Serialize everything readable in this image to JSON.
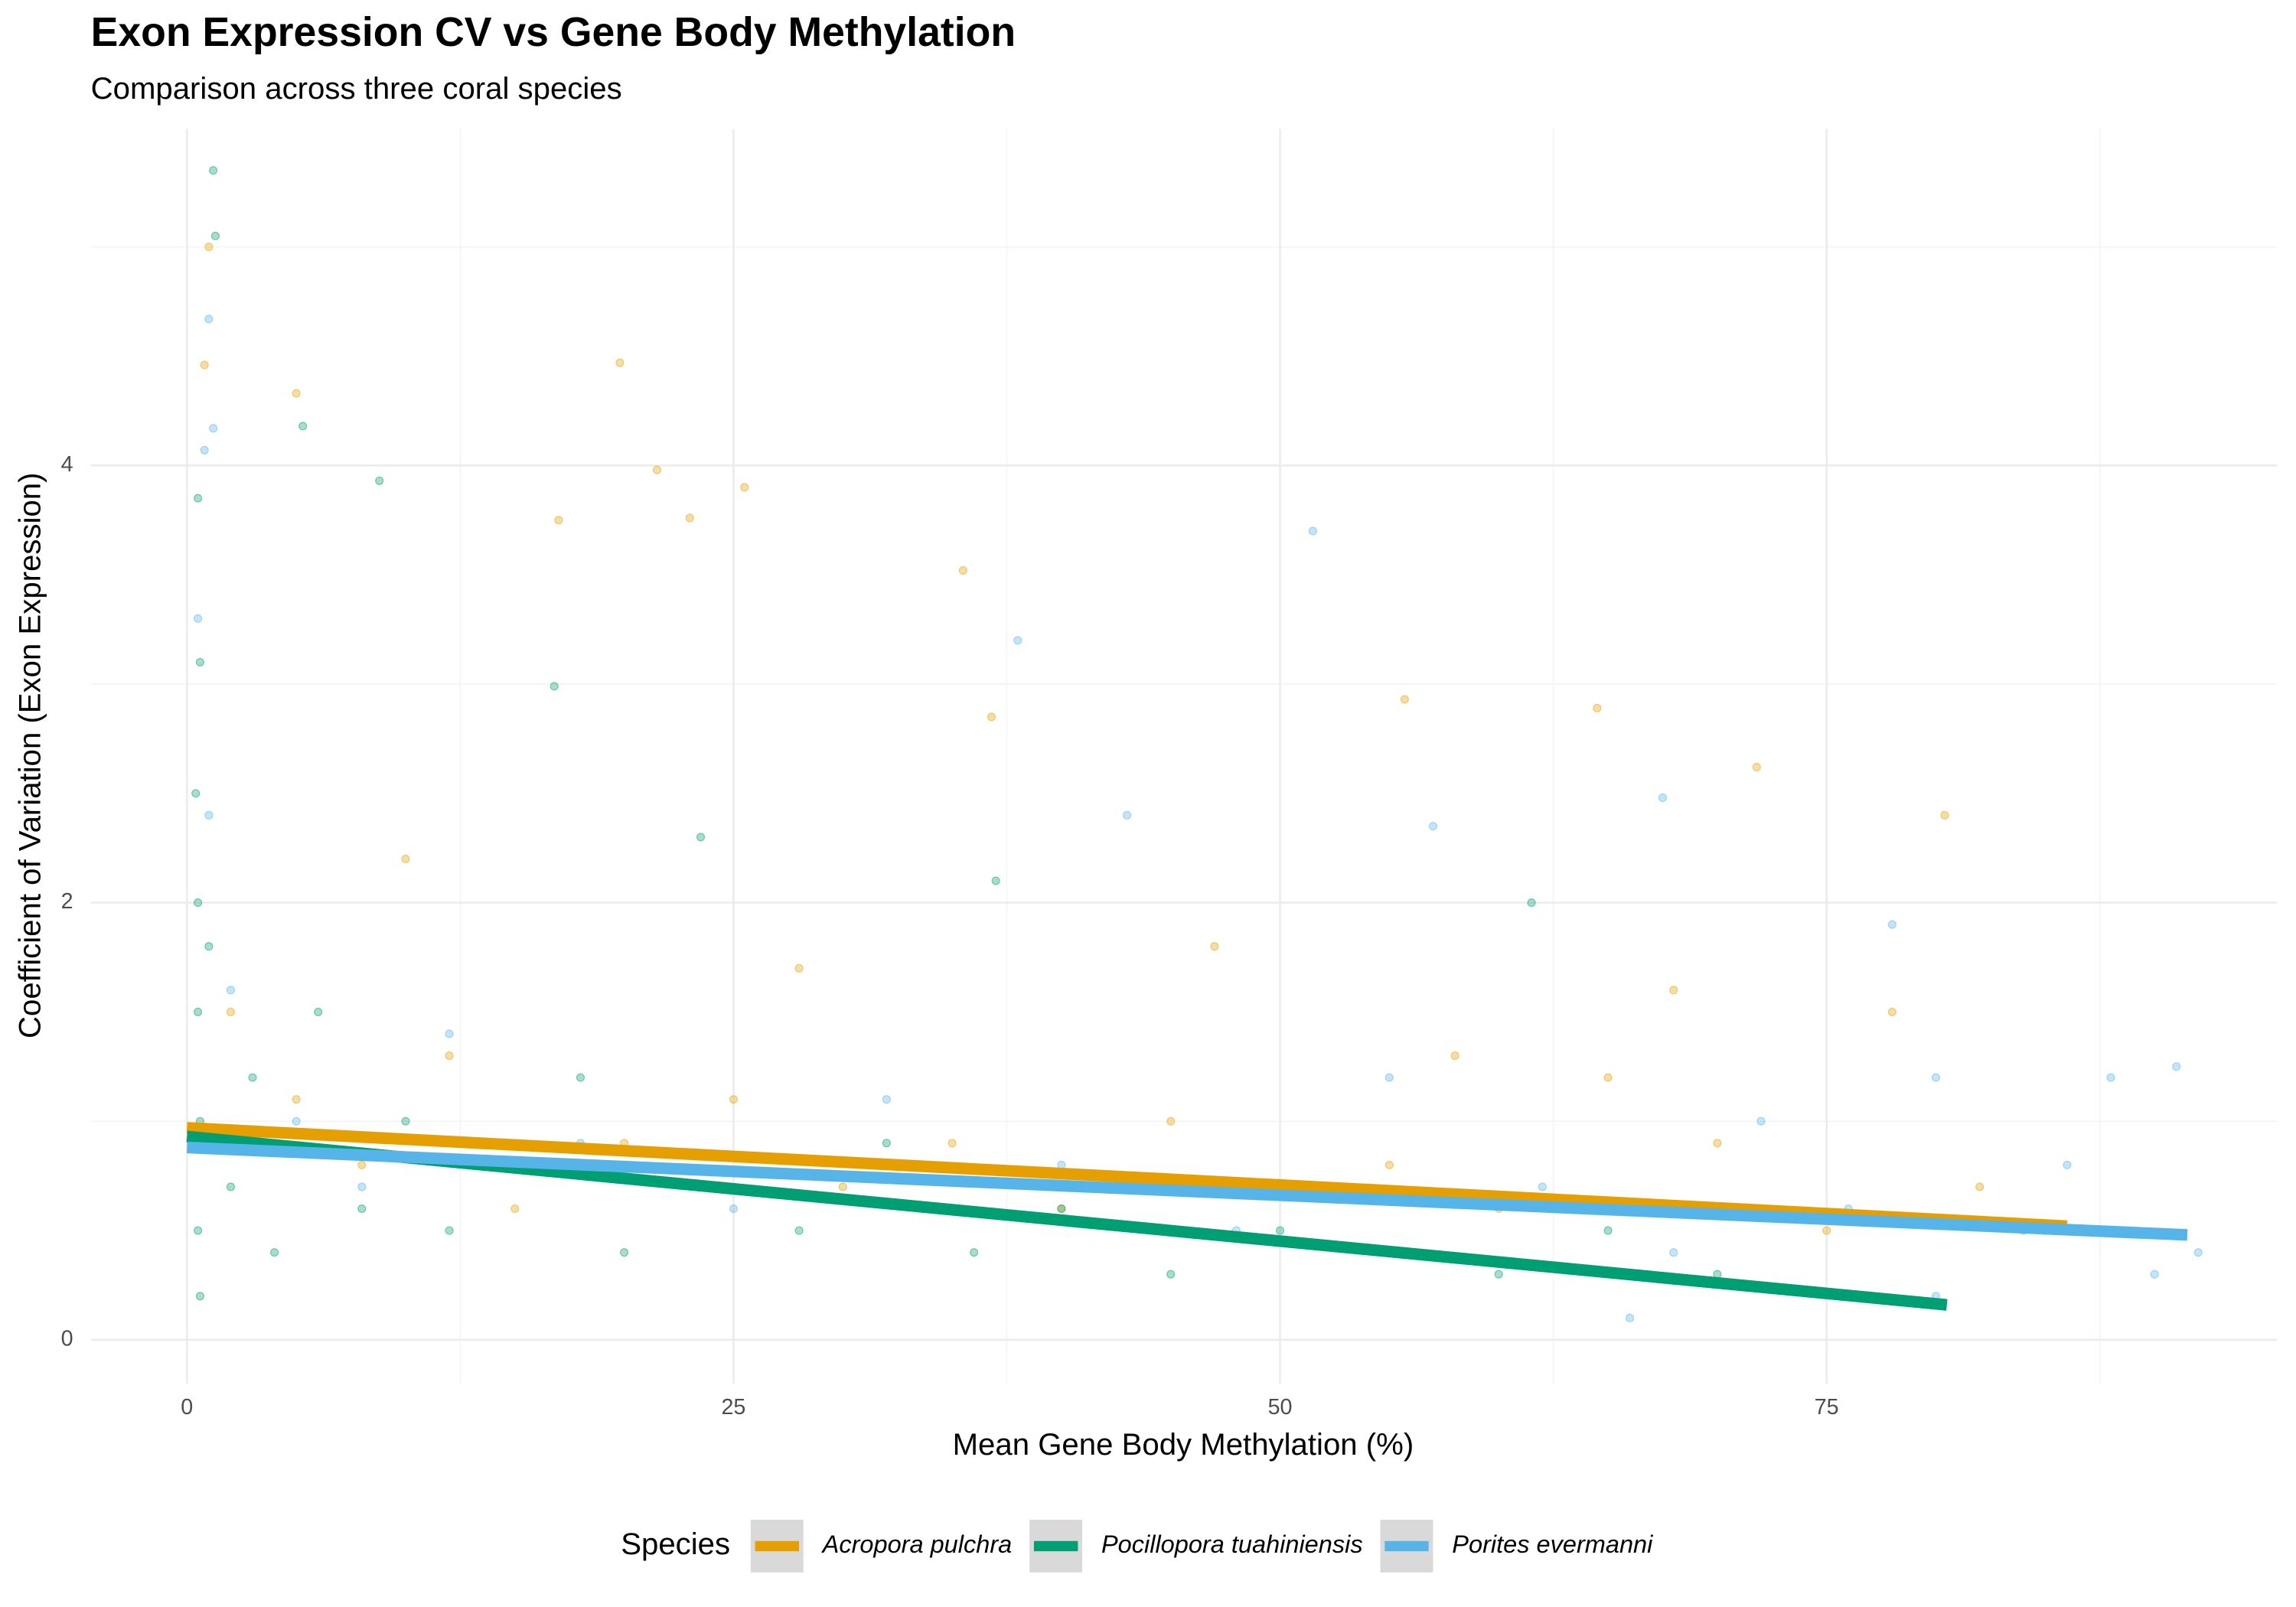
{
  "chart_data": {
    "type": "scatter",
    "title": "Exon Expression CV vs Gene Body Methylation",
    "subtitle": "Comparison across three coral species",
    "x_label": "Mean Gene Body Methylation (%)",
    "y_label": "Coefficient of Variation (Exon Expression)",
    "legend_title": "Species",
    "legend_position": "bottom",
    "grid": true,
    "xlim": [
      -4.4,
      95.6
    ],
    "ylim": [
      -0.2,
      5.54
    ],
    "xticks": [
      0,
      25,
      50,
      75
    ],
    "yticks": [
      0,
      2,
      4
    ],
    "x_minor_ticks": [
      12.5,
      37.5,
      62.5,
      87.5
    ],
    "y_minor_ticks": [
      1,
      3,
      5
    ],
    "series": [
      {
        "name": "Acropora pulchra",
        "color": "#E69F00",
        "x": [
          5,
          19.8,
          21.5,
          25.5,
          23,
          35.5,
          17,
          1,
          0.8,
          55.7,
          36.8,
          64.5,
          71.8,
          80.4,
          2,
          5,
          8,
          12,
          15,
          20,
          25,
          30,
          35,
          40,
          45,
          50,
          55,
          60,
          65,
          70,
          75,
          78,
          82,
          85,
          10,
          28,
          47,
          58,
          68
        ],
        "y": [
          4.33,
          4.47,
          3.98,
          3.9,
          3.76,
          3.52,
          3.75,
          5.0,
          4.46,
          2.93,
          2.85,
          2.89,
          2.62,
          2.4,
          1.5,
          1.1,
          0.8,
          1.3,
          0.6,
          0.9,
          1.1,
          0.7,
          0.9,
          0.6,
          1.0,
          0.7,
          0.8,
          0.6,
          1.2,
          0.9,
          0.5,
          1.5,
          0.7,
          0.5,
          2.2,
          1.7,
          1.8,
          1.3,
          1.6
        ],
        "trend": {
          "x": [
            0,
            86
          ],
          "y": [
            0.97,
            0.52
          ]
        }
      },
      {
        "name": "Pocillopora tuahiniensis",
        "color": "#009E73",
        "x": [
          1.2,
          1.3,
          5.3,
          8.8,
          0.5,
          0.6,
          0.4,
          0.5,
          0.5,
          0.6,
          0.5,
          0.6,
          1,
          2,
          3,
          4,
          6,
          8,
          10,
          12,
          15,
          18,
          20,
          24,
          28,
          32,
          36,
          40,
          45,
          50,
          55,
          60,
          65,
          70,
          16.8,
          23.5,
          37,
          61.5
        ],
        "y": [
          5.35,
          5.05,
          4.18,
          3.93,
          3.85,
          3.1,
          2.5,
          2.0,
          1.5,
          1.0,
          0.5,
          0.2,
          1.8,
          0.7,
          1.2,
          0.4,
          1.5,
          0.6,
          1.0,
          0.5,
          0.8,
          1.2,
          0.4,
          0.7,
          0.5,
          0.9,
          0.4,
          0.6,
          0.3,
          0.5,
          0.4,
          0.3,
          0.5,
          0.3,
          2.99,
          2.3,
          2.1,
          2.0
        ],
        "trend": {
          "x": [
            0,
            80.5
          ],
          "y": [
            0.93,
            0.16
          ]
        }
      },
      {
        "name": "Porites evermanni",
        "color": "#56B4E9",
        "x": [
          1,
          1.2,
          0.8,
          51.5,
          38,
          0.5,
          1,
          2,
          5,
          8,
          12,
          18,
          25,
          32,
          40,
          48,
          55,
          62,
          68,
          72,
          76,
          80,
          84,
          86,
          88,
          90,
          91,
          92,
          66,
          80,
          43,
          57,
          67.5,
          78
        ],
        "y": [
          4.67,
          4.17,
          4.07,
          3.7,
          3.2,
          3.3,
          2.4,
          1.6,
          1.0,
          0.7,
          1.4,
          0.9,
          0.6,
          1.1,
          0.8,
          0.5,
          1.2,
          0.7,
          0.4,
          1.0,
          0.6,
          1.2,
          0.5,
          0.8,
          1.2,
          0.3,
          1.25,
          0.4,
          0.1,
          0.2,
          2.4,
          2.35,
          2.48,
          1.9
        ],
        "trend": {
          "x": [
            0,
            91.5
          ],
          "y": [
            0.88,
            0.48
          ]
        }
      }
    ]
  }
}
